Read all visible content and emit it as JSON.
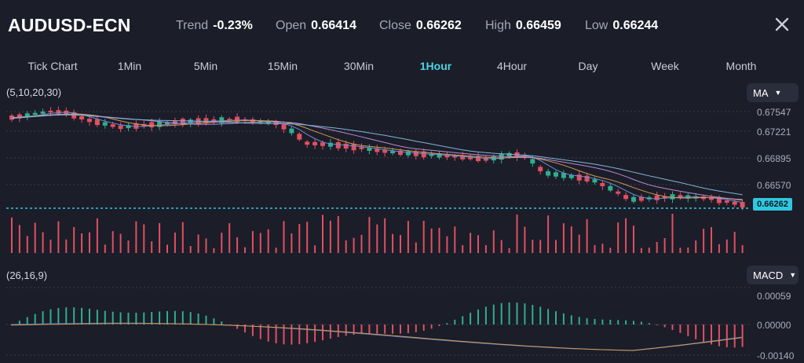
{
  "header": {
    "symbol": "AUDUSD-ECN",
    "trend_label": "Trend",
    "trend_value": "-0.23%",
    "open_label": "Open",
    "open_value": "0.66414",
    "close_label": "Close",
    "close_value": "0.66262",
    "high_label": "High",
    "high_value": "0.66459",
    "low_label": "Low",
    "low_value": "0.66244"
  },
  "tabs": [
    {
      "label": "Tick Chart",
      "active": false
    },
    {
      "label": "1Min",
      "active": false
    },
    {
      "label": "5Min",
      "active": false
    },
    {
      "label": "15Min",
      "active": false
    },
    {
      "label": "30Min",
      "active": false
    },
    {
      "label": "1Hour",
      "active": true
    },
    {
      "label": "4Hour",
      "active": false
    },
    {
      "label": "Day",
      "active": false
    },
    {
      "label": "Week",
      "active": false
    },
    {
      "label": "Month",
      "active": false
    }
  ],
  "main_panel": {
    "params_label": "(5,10,20,30)",
    "indicator_dropdown": "MA",
    "price_axis": [
      "0.67547",
      "0.67221",
      "0.66895",
      "0.66570"
    ],
    "current_price": "0.66262"
  },
  "macd_panel": {
    "params_label": "(26,16,9)",
    "indicator_dropdown": "MACD",
    "axis": [
      "0.00059",
      "0.00000",
      "-0.00140"
    ]
  },
  "colors": {
    "background": "#1b1d29",
    "up": "#2fae8e",
    "down": "#e2505f",
    "accent": "#4dd4e4",
    "price_line": "#2fc7e0"
  },
  "icons": {
    "close": "close-icon",
    "caret": "caret-down-icon"
  }
}
